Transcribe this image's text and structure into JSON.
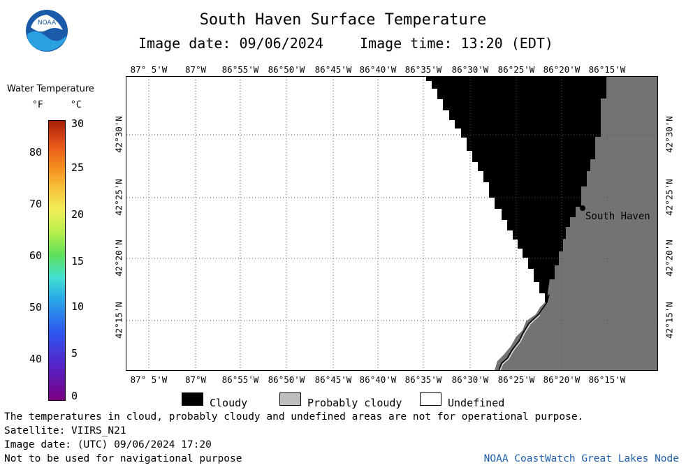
{
  "header": {
    "title": "South Haven Surface Temperature",
    "image_date": "Image date: 09/06/2024",
    "image_time": "Image time: 13:20 (EDT)",
    "logo_text": "NOAA"
  },
  "legend": {
    "title": "Water Temperature",
    "unit_f": "°F",
    "unit_c": "°C",
    "f_ticks": [
      "80",
      "70",
      "60",
      "50",
      "40"
    ],
    "c_ticks": [
      "30",
      "25",
      "20",
      "15",
      "10",
      "5",
      "0"
    ]
  },
  "map": {
    "lon_labels": [
      "87° 5'W",
      "87°W",
      "86°55'W",
      "86°50'W",
      "86°45'W",
      "86°40'W",
      "86°35'W",
      "86°30'W",
      "86°25'W",
      "86°20'W",
      "86°15'W"
    ],
    "lat_labels": [
      "42°30'N",
      "42°25'N",
      "42°20'N",
      "42°15'N"
    ],
    "place_label": "South Haven",
    "colors": {
      "cloudy": "#000000",
      "probably_cloudy": "#737373",
      "undefined": "#ffffff"
    }
  },
  "key": {
    "cloudy": "Cloudy",
    "probably_cloudy": "Probably cloudy",
    "undefined": "Undefined"
  },
  "footer": {
    "note": "The temperatures in cloud, probably cloudy and undefined areas are not for operational purpose.",
    "satellite": "Satellite: VIIRS_N21",
    "utc_date": "Image date: (UTC) 09/06/2024  17:20",
    "nav_warning": "Not to be used for navigational purpose",
    "credit": "NOAA CoastWatch Great Lakes Node"
  }
}
